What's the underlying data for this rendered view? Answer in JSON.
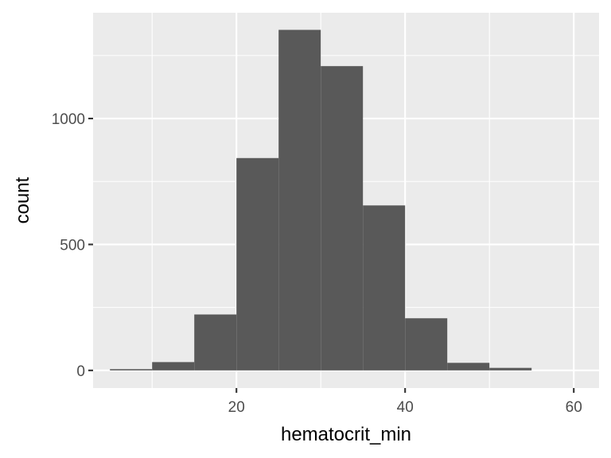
{
  "chart_data": {
    "type": "bar",
    "subtype": "histogram",
    "xlabel": "hematocrit_min",
    "ylabel": "count",
    "xlim": [
      3,
      63
    ],
    "ylim": [
      -70,
      1420
    ],
    "x_ticks": [
      20,
      40,
      60
    ],
    "y_ticks": [
      0,
      500,
      1000
    ],
    "x_minor": [
      10,
      30,
      50
    ],
    "y_minor": [
      250,
      750,
      1250
    ],
    "grid": true,
    "legend": "none",
    "bin_width": 5,
    "bins": [
      {
        "x0": 5,
        "x1": 10,
        "count": 5
      },
      {
        "x0": 10,
        "x1": 15,
        "count": 33
      },
      {
        "x0": 15,
        "x1": 20,
        "count": 222
      },
      {
        "x0": 20,
        "x1": 25,
        "count": 843
      },
      {
        "x0": 25,
        "x1": 30,
        "count": 1352
      },
      {
        "x0": 30,
        "x1": 35,
        "count": 1208
      },
      {
        "x0": 35,
        "x1": 40,
        "count": 655
      },
      {
        "x0": 40,
        "x1": 45,
        "count": 207
      },
      {
        "x0": 45,
        "x1": 50,
        "count": 30
      },
      {
        "x0": 50,
        "x1": 55,
        "count": 10
      }
    ],
    "colors": {
      "bar_fill": "#595959",
      "panel_background": "#ebebeb",
      "grid": "#ffffff"
    }
  }
}
